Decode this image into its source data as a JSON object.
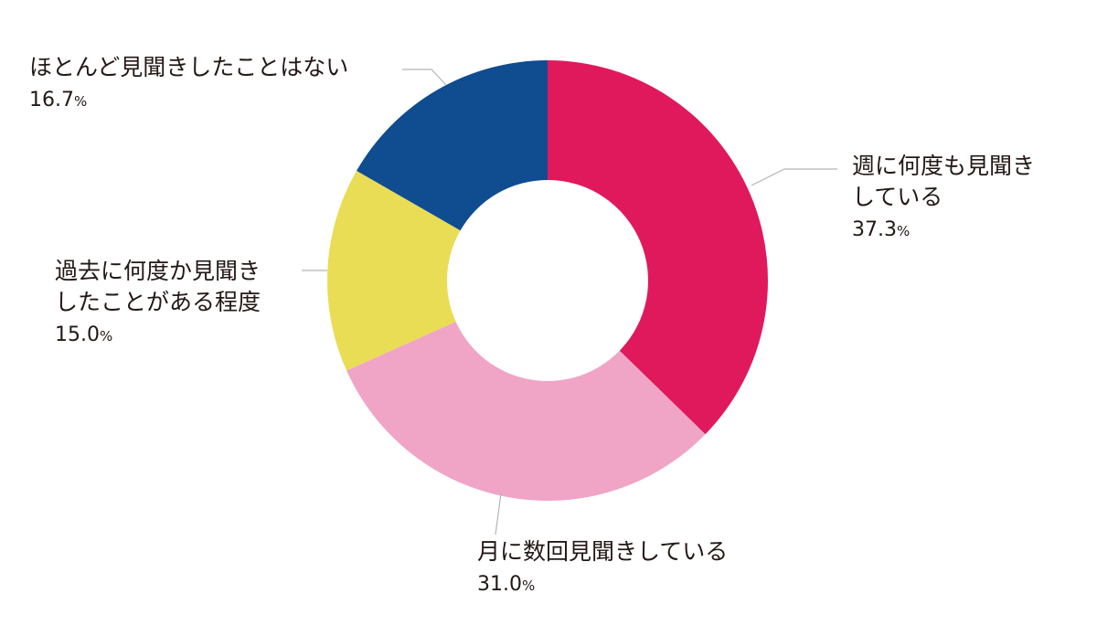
{
  "chart_data": {
    "type": "pie",
    "style": "donut",
    "start_angle_deg": 0,
    "direction": "clockwise",
    "slices": [
      {
        "label_lines": [
          "週に何度も見聞き",
          "している"
        ],
        "value": 37.3,
        "value_label": "37.3",
        "unit": "%",
        "color": "#e0195c"
      },
      {
        "label_lines": [
          "月に数回見聞きしている"
        ],
        "value": 31.0,
        "value_label": "31.0",
        "unit": "%",
        "color": "#f0a5c7"
      },
      {
        "label_lines": [
          "過去に何度か見聞き",
          "したことがある程度"
        ],
        "value": 15.0,
        "value_label": "15.0",
        "unit": "%",
        "color": "#e9dd55"
      },
      {
        "label_lines": [
          "ほとんど見聞きしたことはない"
        ],
        "value": 16.7,
        "value_label": "16.7",
        "unit": "%",
        "color": "#0f4c90"
      }
    ]
  }
}
